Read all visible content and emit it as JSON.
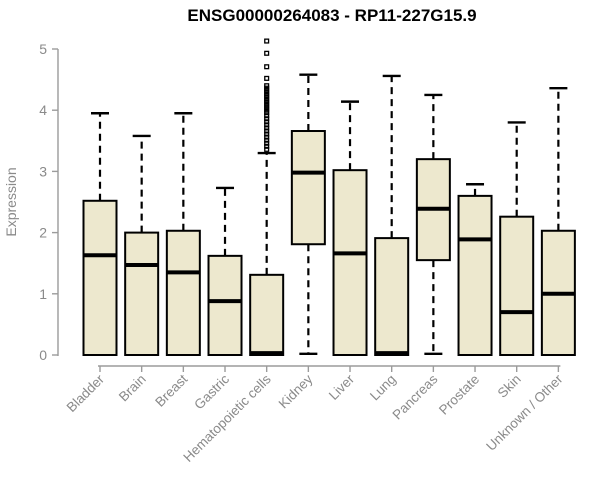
{
  "title": "ENSG00000264083 - RP11-227G15.9",
  "chart_data": {
    "type": "boxplot",
    "title": "ENSG00000264083 - RP11-227G15.9",
    "xlabel": "",
    "ylabel": "Expression",
    "ylim": [
      0,
      5
    ],
    "yticks": [
      0,
      1,
      2,
      3,
      4,
      5
    ],
    "grid": "off",
    "legend": "none",
    "categories": [
      "Bladder",
      "Brain",
      "Breast",
      "Gastric",
      "Hematopoietic cells",
      "Kidney",
      "Liver",
      "Lung",
      "Pancreas",
      "Prostate",
      "Skin",
      "Unknown / Other"
    ],
    "series": [
      {
        "name": "Bladder",
        "low": 0,
        "q1": 0,
        "median": 1.63,
        "q3": 2.52,
        "high": 3.95,
        "outliers": []
      },
      {
        "name": "Brain",
        "low": 0,
        "q1": 0,
        "median": 1.47,
        "q3": 2.0,
        "high": 3.58,
        "outliers": []
      },
      {
        "name": "Breast",
        "low": 0,
        "q1": 0,
        "median": 1.35,
        "q3": 2.03,
        "high": 3.95,
        "outliers": []
      },
      {
        "name": "Gastric",
        "low": 0,
        "q1": 0,
        "median": 0.88,
        "q3": 1.62,
        "high": 2.73,
        "outliers": []
      },
      {
        "name": "Hematopoietic cells",
        "low": 0,
        "q1": 0,
        "median": 0.03,
        "q3": 1.31,
        "high": 3.3,
        "outliers": [
          5.13,
          4.93,
          4.71,
          4.52,
          4.4,
          4.36,
          4.32,
          4.28,
          4.24,
          4.2,
          4.16,
          4.12,
          4.08,
          4.04,
          4.0,
          3.96,
          3.91,
          3.86,
          3.81,
          3.76,
          3.71,
          3.66,
          3.61,
          3.56,
          3.51,
          3.46,
          3.41,
          3.36
        ]
      },
      {
        "name": "Kidney",
        "low": 0.02,
        "q1": 1.81,
        "median": 2.98,
        "q3": 3.66,
        "high": 4.58,
        "outliers": []
      },
      {
        "name": "Liver",
        "low": 0,
        "q1": 0,
        "median": 1.66,
        "q3": 3.02,
        "high": 4.14,
        "outliers": []
      },
      {
        "name": "Lung",
        "low": 0,
        "q1": 0,
        "median": 0.03,
        "q3": 1.91,
        "high": 4.56,
        "outliers": []
      },
      {
        "name": "Pancreas",
        "low": 0.02,
        "q1": 1.55,
        "median": 2.39,
        "q3": 3.2,
        "high": 4.25,
        "outliers": []
      },
      {
        "name": "Prostate",
        "low": 0,
        "q1": 0,
        "median": 1.89,
        "q3": 2.6,
        "high": 2.79,
        "outliers": []
      },
      {
        "name": "Skin",
        "low": 0,
        "q1": 0,
        "median": 0.7,
        "q3": 2.26,
        "high": 3.8,
        "outliers": []
      },
      {
        "name": "Unknown / Other",
        "low": 0,
        "q1": 0,
        "median": 1.0,
        "q3": 2.03,
        "high": 4.36,
        "outliers": []
      }
    ],
    "colors": {
      "box_fill": "#EDE8CE",
      "box_stroke": "#000000",
      "axis_line": "#9b9b9b",
      "axis_text": "#8a8a8a",
      "title_text": "#000000"
    }
  }
}
